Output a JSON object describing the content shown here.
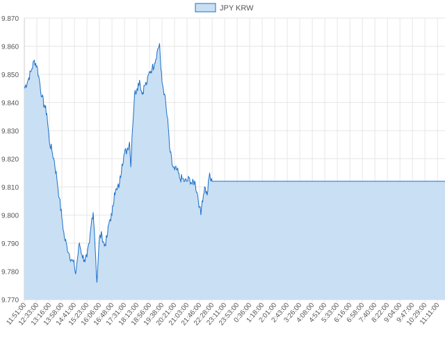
{
  "chart_data": {
    "type": "area",
    "title": "",
    "xlabel": "",
    "ylabel": "",
    "legend": {
      "position": "top-center",
      "label": "JPY KRW"
    },
    "grid": true,
    "colors": {
      "line": "#1a6fc9",
      "fill": "#c9dff3",
      "grid": "#e6e6e6",
      "text": "#555555"
    },
    "ylim": [
      9.77,
      9.87
    ],
    "yticks": [
      "9.770",
      "9.780",
      "9.790",
      "9.800",
      "9.810",
      "9.820",
      "9.830",
      "9.840",
      "9.850",
      "9.860",
      "9.870"
    ],
    "xticks": [
      "11:51:00",
      "12:33:00",
      "13:16:00",
      "13:58:00",
      "14:41:00",
      "15:23:00",
      "16:06:00",
      "16:48:00",
      "17:31:00",
      "18:13:00",
      "18:56:00",
      "19:38:00",
      "20:21:00",
      "21:03:00",
      "21:46:00",
      "22:28:00",
      "23:11:00",
      "23:53:00",
      "0:36:00",
      "1:18:00",
      "2:01:00",
      "2:43:00",
      "3:26:00",
      "4:08:00",
      "4:51:00",
      "5:33:00",
      "6:16:00",
      "6:58:00",
      "7:40:00",
      "8:22:00",
      "9:04:00",
      "9:47:00",
      "10:29:00",
      "11:11:00"
    ],
    "series": [
      {
        "name": "JPY KRW",
        "points": [
          [
            0,
            9.845
          ],
          [
            0.3,
            9.848
          ],
          [
            0.6,
            9.852
          ],
          [
            0.8,
            9.855
          ],
          [
            1.0,
            9.853
          ],
          [
            1.2,
            9.848
          ],
          [
            1.4,
            9.842
          ],
          [
            1.6,
            9.839
          ],
          [
            1.8,
            9.836
          ],
          [
            2.0,
            9.826
          ],
          [
            2.2,
            9.823
          ],
          [
            2.4,
            9.819
          ],
          [
            2.6,
            9.813
          ],
          [
            2.8,
            9.806
          ],
          [
            3.0,
            9.799
          ],
          [
            3.2,
            9.792
          ],
          [
            3.4,
            9.789
          ],
          [
            3.6,
            9.786
          ],
          [
            3.8,
            9.784
          ],
          [
            4.0,
            9.782
          ],
          [
            4.1,
            9.779
          ],
          [
            4.2,
            9.783
          ],
          [
            4.4,
            9.79
          ],
          [
            4.6,
            9.786
          ],
          [
            4.8,
            9.784
          ],
          [
            5.0,
            9.785
          ],
          [
            5.2,
            9.79
          ],
          [
            5.4,
            9.799
          ],
          [
            5.5,
            9.801
          ],
          [
            5.6,
            9.794
          ],
          [
            5.7,
            9.785
          ],
          [
            5.8,
            9.776
          ],
          [
            5.9,
            9.784
          ],
          [
            6.0,
            9.792
          ],
          [
            6.2,
            9.793
          ],
          [
            6.4,
            9.789
          ],
          [
            6.6,
            9.792
          ],
          [
            6.8,
            9.798
          ],
          [
            7.0,
            9.8
          ],
          [
            7.2,
            9.808
          ],
          [
            7.4,
            9.809
          ],
          [
            7.6,
            9.811
          ],
          [
            7.8,
            9.818
          ],
          [
            8.0,
            9.822
          ],
          [
            8.2,
            9.823
          ],
          [
            8.4,
            9.826
          ],
          [
            8.5,
            9.817
          ],
          [
            8.6,
            9.828
          ],
          [
            8.8,
            9.843
          ],
          [
            9.0,
            9.845
          ],
          [
            9.2,
            9.848
          ],
          [
            9.4,
            9.843
          ],
          [
            9.6,
            9.846
          ],
          [
            9.8,
            9.847
          ],
          [
            10.0,
            9.851
          ],
          [
            10.2,
            9.852
          ],
          [
            10.4,
            9.854
          ],
          [
            10.6,
            9.858
          ],
          [
            10.8,
            9.861
          ],
          [
            10.9,
            9.852
          ],
          [
            11.0,
            9.847
          ],
          [
            11.2,
            9.843
          ],
          [
            11.4,
            9.835
          ],
          [
            11.5,
            9.831
          ],
          [
            11.6,
            9.824
          ],
          [
            11.8,
            9.818
          ],
          [
            12.0,
            9.816
          ],
          [
            12.2,
            9.816
          ],
          [
            12.4,
            9.813
          ],
          [
            12.6,
            9.813
          ],
          [
            12.8,
            9.812
          ],
          [
            13.0,
            9.812
          ],
          [
            13.2,
            9.813
          ],
          [
            13.4,
            9.811
          ],
          [
            13.6,
            9.812
          ],
          [
            13.8,
            9.808
          ],
          [
            14.0,
            9.803
          ],
          [
            14.1,
            9.8
          ],
          [
            14.2,
            9.805
          ],
          [
            14.4,
            9.81
          ],
          [
            14.6,
            9.807
          ],
          [
            14.8,
            9.815
          ],
          [
            14.9,
            9.812
          ],
          [
            15.0,
            9.812
          ],
          [
            33.6,
            9.812
          ]
        ]
      }
    ]
  }
}
